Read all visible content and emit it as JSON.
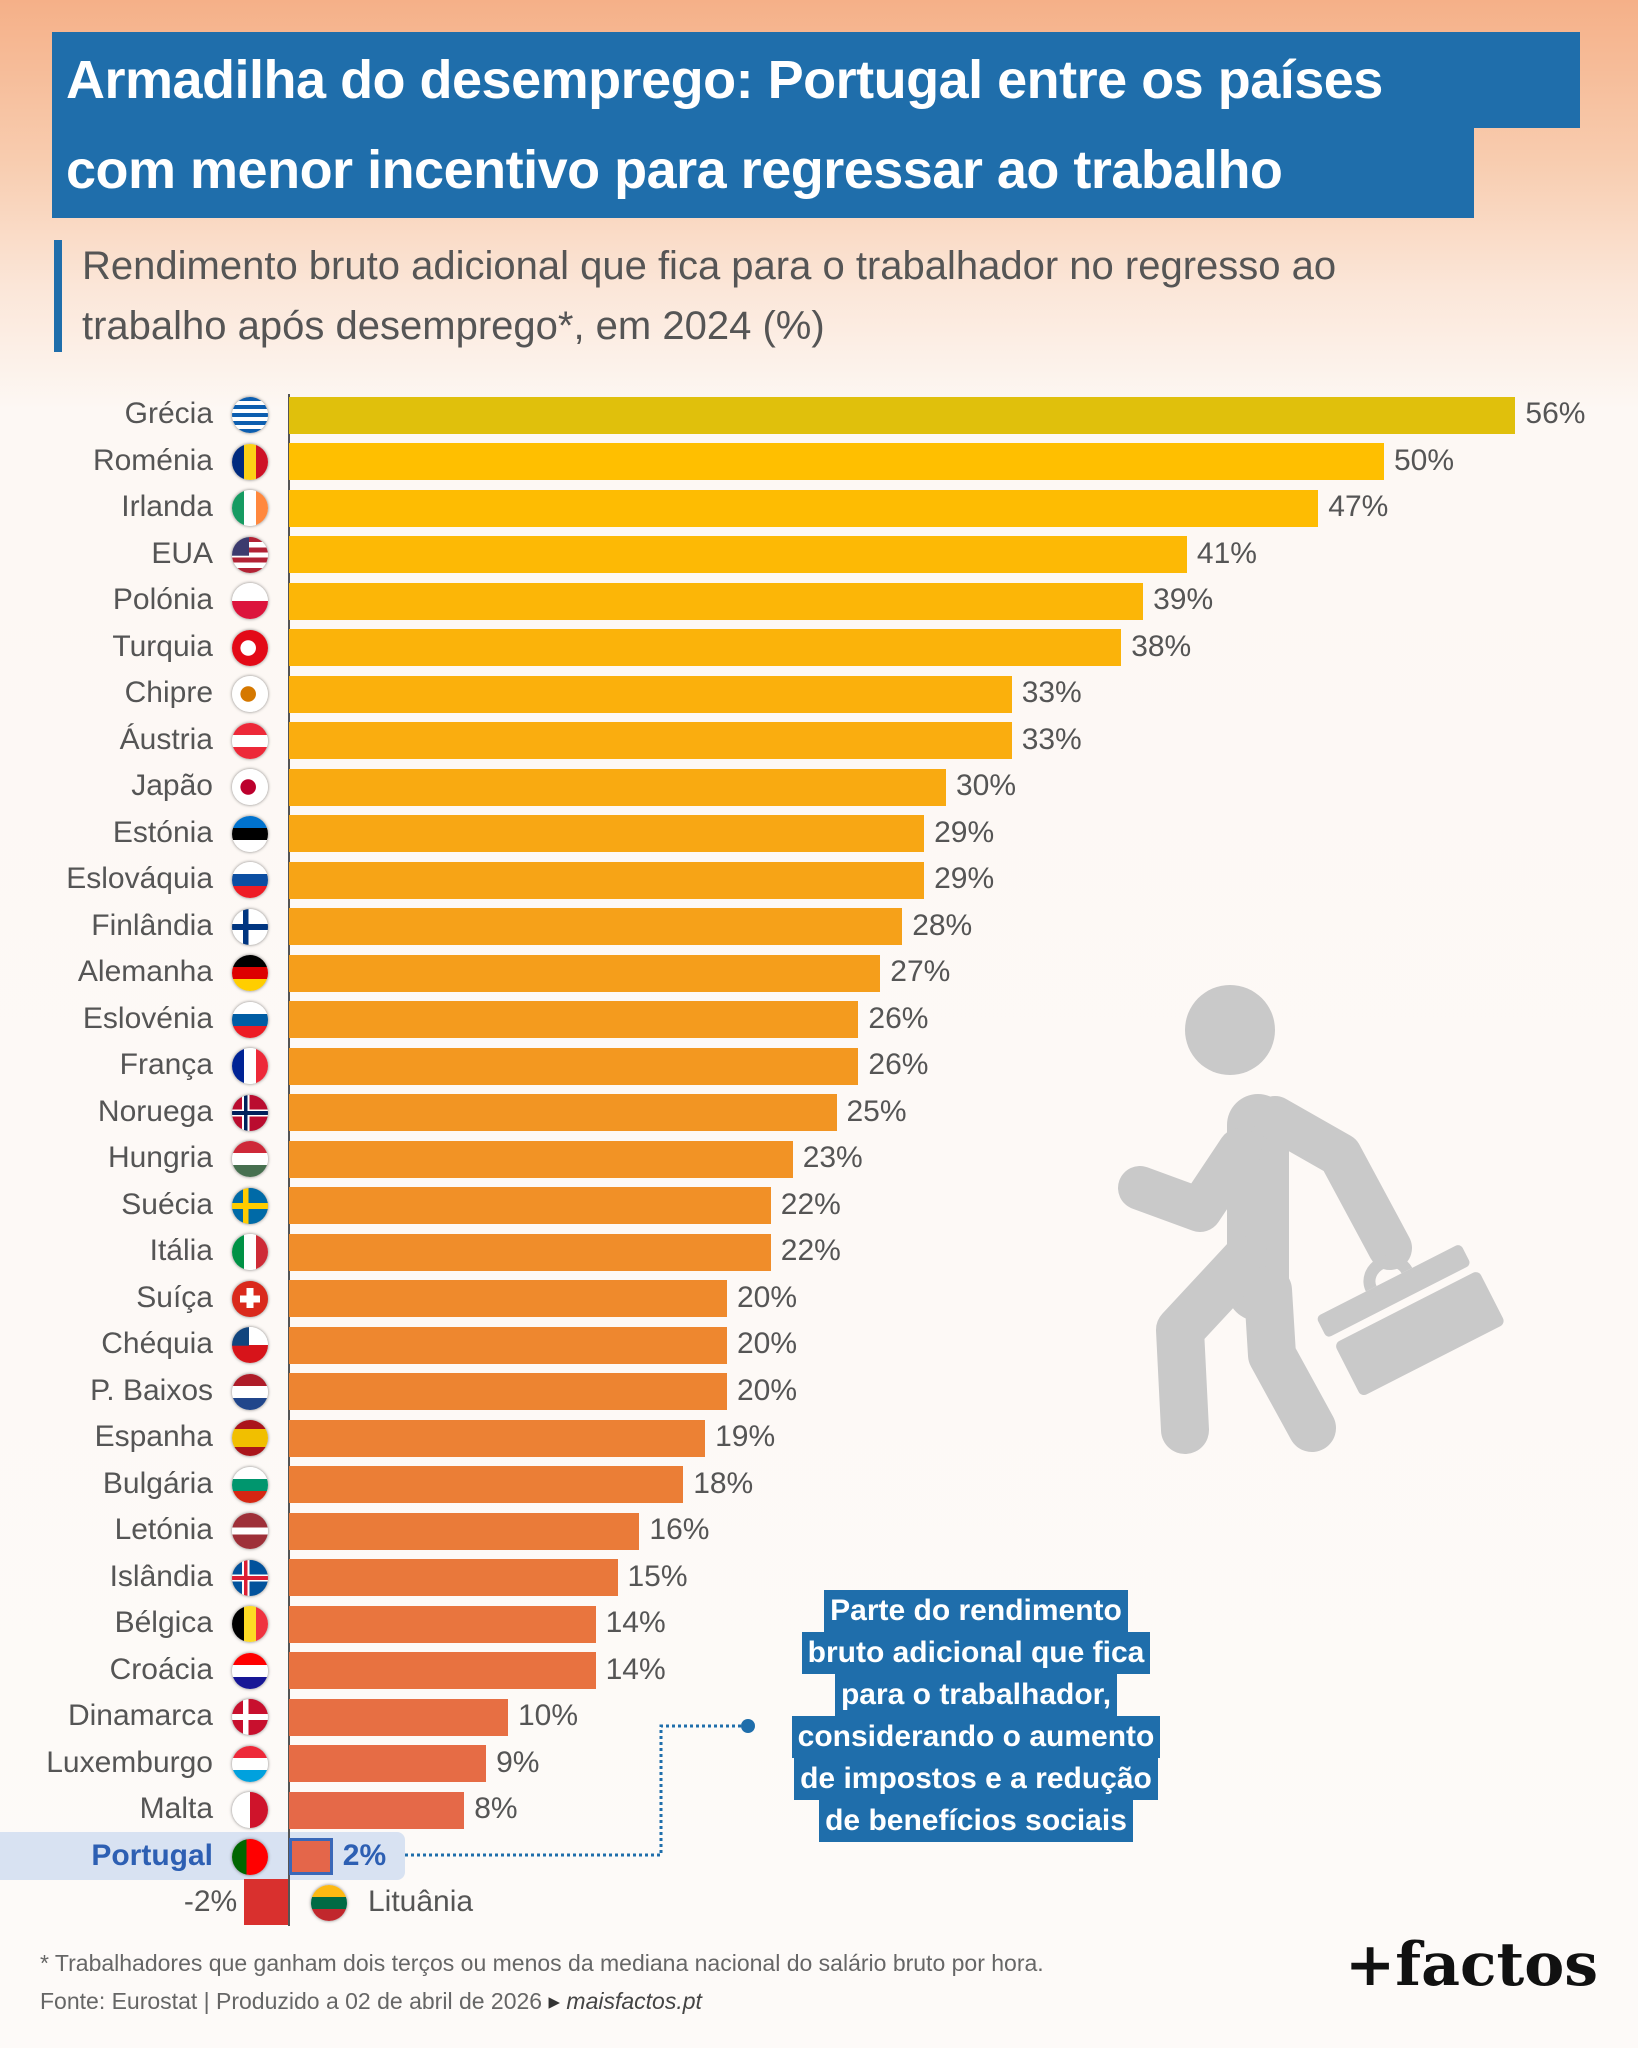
{
  "header": {
    "title_line1": "Armadilha do desemprego: Portugal entre os países",
    "title_line2": "com menor incentivo para regressar ao trabalho",
    "subtitle_line1": "Rendimento bruto adicional que fica para o trabalhador no regresso ao",
    "subtitle_line2": "trabalho após desemprego*, em 2024 (%)"
  },
  "colors": {
    "title_bg": "#1f6eab",
    "first_bar": "#e0c00c",
    "bar_start": "#ffbf00",
    "bar_end": "#e4664a",
    "negative_bar": "#d9302e",
    "highlight_text": "#2d5fb3",
    "highlight_band": "#d8e2f2",
    "icon_gray": "#c9c9c9"
  },
  "chart_data": {
    "type": "bar",
    "orientation": "horizontal",
    "title": "Rendimento bruto adicional que fica para o trabalhador no regresso ao trabalho após desemprego*, em 2024 (%)",
    "unit": "%",
    "highlight": "Portugal",
    "categories": [
      "Grécia",
      "Roménia",
      "Irlanda",
      "EUA",
      "Polónia",
      "Turquia",
      "Chipre",
      "Áustria",
      "Japão",
      "Estónia",
      "Eslováquia",
      "Finlândia",
      "Alemanha",
      "Eslovénia",
      "França",
      "Noruega",
      "Hungria",
      "Suécia",
      "Itália",
      "Suíça",
      "Chéquia",
      "P. Baixos",
      "Espanha",
      "Bulgária",
      "Letónia",
      "Islândia",
      "Bélgica",
      "Croácia",
      "Dinamarca",
      "Luxemburgo",
      "Malta",
      "Portugal",
      "Lituânia"
    ],
    "values": [
      56,
      50,
      47,
      41,
      39,
      38,
      33,
      33,
      30,
      29,
      29,
      28,
      27,
      26,
      26,
      25,
      23,
      22,
      22,
      20,
      20,
      20,
      19,
      18,
      16,
      15,
      14,
      14,
      10,
      9,
      8,
      2,
      -2
    ],
    "labels": [
      "56%",
      "50%",
      "47%",
      "41%",
      "39%",
      "38%",
      "33%",
      "33%",
      "30%",
      "29%",
      "29%",
      "28%",
      "27%",
      "26%",
      "26%",
      "25%",
      "23%",
      "22%",
      "22%",
      "20%",
      "20%",
      "20%",
      "19%",
      "18%",
      "16%",
      "15%",
      "14%",
      "14%",
      "10%",
      "9%",
      "8%",
      "2%",
      "-2%"
    ],
    "flags": [
      {
        "t": "stripes-h",
        "c": [
          "#0d5eaf",
          "#ffffff",
          "#0d5eaf",
          "#ffffff",
          "#0d5eaf",
          "#ffffff",
          "#0d5eaf",
          "#ffffff",
          "#0d5eaf"
        ]
      },
      {
        "t": "stripes-v",
        "c": [
          "#002b7f",
          "#fcd116",
          "#ce1126"
        ]
      },
      {
        "t": "stripes-v",
        "c": [
          "#169b62",
          "#ffffff",
          "#ff883e"
        ]
      },
      {
        "t": "stripes-h",
        "c": [
          "#b22234",
          "#ffffff",
          "#b22234",
          "#ffffff",
          "#b22234",
          "#ffffff",
          "#b22234"
        ],
        "canton": "#3c3b6e"
      },
      {
        "t": "stripes-h",
        "c": [
          "#ffffff",
          "#dc143c"
        ]
      },
      {
        "t": "dot",
        "c": [
          "#e30a17",
          "#ffffff"
        ]
      },
      {
        "t": "dot",
        "c": [
          "#ffffff",
          "#d57800"
        ]
      },
      {
        "t": "stripes-h",
        "c": [
          "#ed2939",
          "#ffffff",
          "#ed2939"
        ]
      },
      {
        "t": "dot",
        "c": [
          "#ffffff",
          "#bc002d"
        ]
      },
      {
        "t": "stripes-h",
        "c": [
          "#0072ce",
          "#000000",
          "#ffffff"
        ]
      },
      {
        "t": "stripes-h",
        "c": [
          "#ffffff",
          "#0b4ea2",
          "#ee1c25"
        ]
      },
      {
        "t": "cross",
        "c": [
          "#ffffff",
          "#003580"
        ]
      },
      {
        "t": "stripes-h",
        "c": [
          "#000000",
          "#dd0000",
          "#ffce00"
        ]
      },
      {
        "t": "stripes-h",
        "c": [
          "#ffffff",
          "#005da4",
          "#ed1c24"
        ]
      },
      {
        "t": "stripes-v",
        "c": [
          "#002395",
          "#ffffff",
          "#ed2939"
        ]
      },
      {
        "t": "cross2",
        "c": [
          "#ba0c2f",
          "#ffffff",
          "#00205b"
        ]
      },
      {
        "t": "stripes-h",
        "c": [
          "#ce2939",
          "#ffffff",
          "#477050"
        ]
      },
      {
        "t": "cross",
        "c": [
          "#006aa7",
          "#fecc00"
        ]
      },
      {
        "t": "stripes-v",
        "c": [
          "#009246",
          "#ffffff",
          "#ce2b37"
        ]
      },
      {
        "t": "plus",
        "c": [
          "#da291c",
          "#ffffff"
        ]
      },
      {
        "t": "stripes-h",
        "c": [
          "#ffffff",
          "#d7141a"
        ],
        "canton": "#11457e"
      },
      {
        "t": "stripes-h",
        "c": [
          "#ae1c28",
          "#ffffff",
          "#21468b"
        ]
      },
      {
        "t": "stripes-h",
        "c": [
          "#aa151b",
          "#f1bf00",
          "#f1bf00",
          "#aa151b"
        ]
      },
      {
        "t": "stripes-h",
        "c": [
          "#ffffff",
          "#00966e",
          "#d62612"
        ]
      },
      {
        "t": "stripes-h",
        "c": [
          "#9e3039",
          "#9e3039",
          "#ffffff",
          "#9e3039",
          "#9e3039"
        ]
      },
      {
        "t": "cross2",
        "c": [
          "#02529c",
          "#ffffff",
          "#dc1e35"
        ]
      },
      {
        "t": "stripes-v",
        "c": [
          "#000000",
          "#fdda24",
          "#ef3340"
        ]
      },
      {
        "t": "stripes-h",
        "c": [
          "#ff0000",
          "#ffffff",
          "#171796"
        ]
      },
      {
        "t": "cross",
        "c": [
          "#c8102e",
          "#ffffff"
        ]
      },
      {
        "t": "stripes-h",
        "c": [
          "#ed2939",
          "#ffffff",
          "#00a1de"
        ]
      },
      {
        "t": "stripes-v",
        "c": [
          "#ffffff",
          "#cf142b"
        ]
      },
      {
        "t": "stripes-v",
        "c": [
          "#006600",
          "#006600",
          "#ff0000",
          "#ff0000",
          "#ff0000"
        ]
      },
      {
        "t": "stripes-h",
        "c": [
          "#fdb913",
          "#006a44",
          "#c1272d"
        ]
      }
    ]
  },
  "annotation": {
    "lines": [
      "Parte do rendimento",
      "bruto adicional que fica",
      "para o trabalhador,",
      "considerando o aumento",
      "de impostos e a redução",
      "de benefícios sociais"
    ]
  },
  "footer": {
    "footnote": "* Trabalhadores que ganham dois terços ou menos da mediana nacional do salário bruto por hora.",
    "source": "Fonte: Eurostat | Produzido a 02 de abril de 2026",
    "source_arrow": "▸",
    "site": "maisfactos.pt",
    "logo": "+factos"
  }
}
